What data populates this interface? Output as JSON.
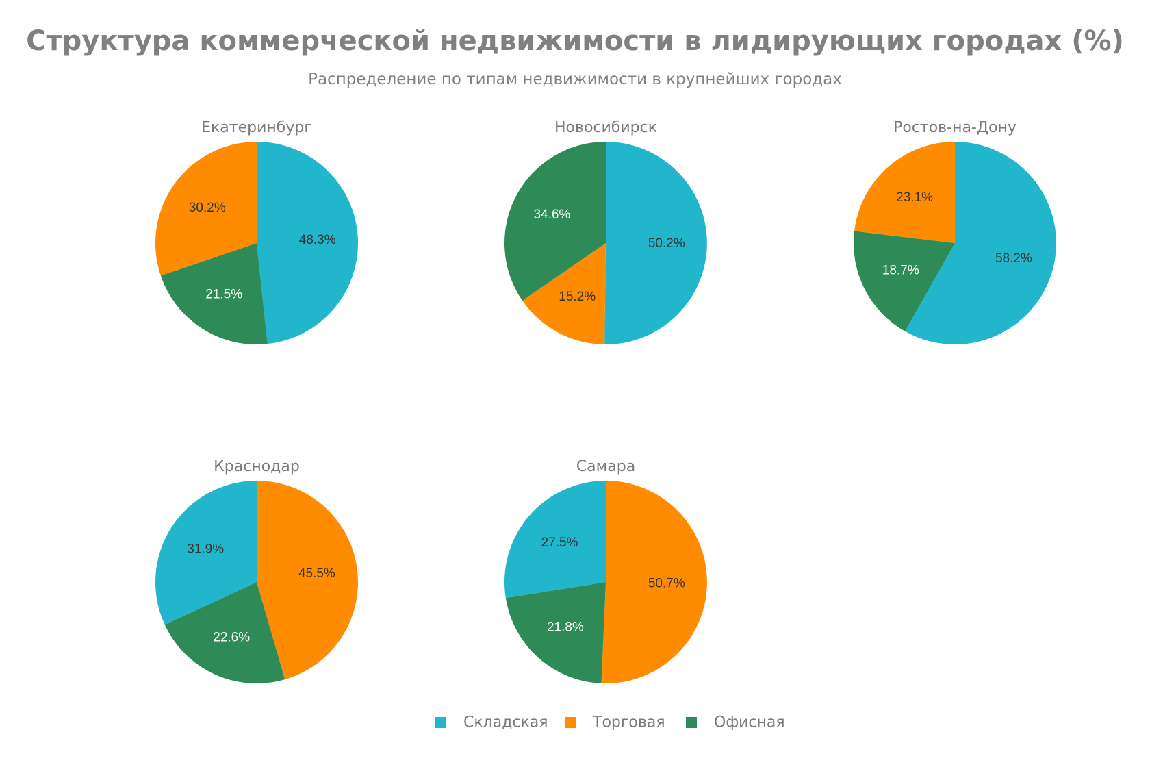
{
  "header": {
    "title": "Структура коммерческой недвижимости в лидирующих городах (%)",
    "subtitle": "Распределение по типам недвижимости в крупнейших городах"
  },
  "legend": [
    {
      "name": "Складская",
      "color": "#21b6cc"
    },
    {
      "name": "Торговая",
      "color": "#ff8c00"
    },
    {
      "name": "Офисная",
      "color": "#2e8b57"
    }
  ],
  "chart_data": {
    "type": "pie",
    "title": "Структура коммерческой недвижимости в лидирующих городах (%)",
    "subtitle": "Распределение по типам недвижимости в крупнейших городах",
    "categories": [
      "Складская",
      "Торговая",
      "Офисная"
    ],
    "colors": [
      "#21b6cc",
      "#ff8c00",
      "#2e8b57"
    ],
    "label_colors": [
      "#333333",
      "#333333",
      "#ffffff"
    ],
    "legend_position": "bottom-center",
    "pies": [
      {
        "title": "Екатеринбург",
        "values": [
          48.3,
          30.2,
          21.5
        ],
        "labels": [
          "48.3%",
          "30.2%",
          "21.5%"
        ],
        "slice_order": [
          0,
          2,
          1
        ]
      },
      {
        "title": "Новосибирск",
        "values": [
          50.2,
          15.2,
          34.6
        ],
        "labels": [
          "50.2%",
          "15.2%",
          "34.6%"
        ],
        "slice_order": [
          0,
          1,
          2
        ]
      },
      {
        "title": "Ростов-на-Дону",
        "values": [
          58.2,
          23.1,
          18.7
        ],
        "labels": [
          "58.2%",
          "23.1%",
          "18.7%"
        ],
        "slice_order": [
          0,
          2,
          1
        ]
      },
      {
        "title": "Краснодар",
        "values": [
          31.9,
          45.5,
          22.6
        ],
        "labels": [
          "31.9%",
          "45.5%",
          "22.6%"
        ],
        "slice_order": [
          1,
          2,
          0
        ]
      },
      {
        "title": "Самара",
        "values": [
          27.5,
          50.7,
          21.8
        ],
        "labels": [
          "27.5%",
          "50.7%",
          "21.8%"
        ],
        "slice_order": [
          1,
          2,
          0
        ]
      }
    ]
  }
}
